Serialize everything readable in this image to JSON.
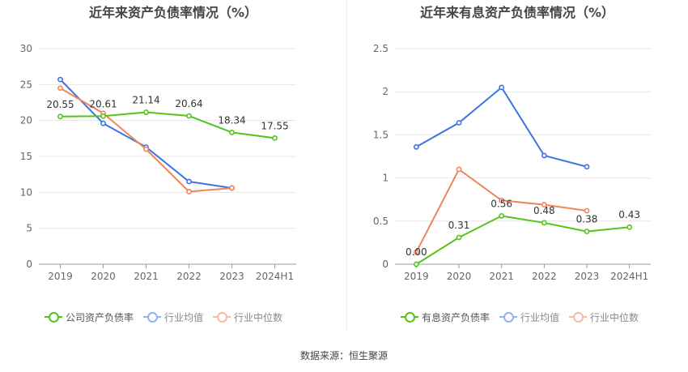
{
  "footer": {
    "source": "数据来源：恒生聚源"
  },
  "colors": {
    "company": "#52c41a",
    "industry_avg": "#3b74e6",
    "industry_median": "#f0845a",
    "grid": "#e6e6e6",
    "axis_text": "#666666"
  },
  "chart_data": [
    {
      "type": "line",
      "title": "近年来资产负债率情况（%）",
      "categories": [
        "2019",
        "2020",
        "2021",
        "2022",
        "2023",
        "2024H1"
      ],
      "ylim": [
        0,
        30
      ],
      "yticks": [
        "0",
        "5",
        "10",
        "15",
        "20",
        "25",
        "30"
      ],
      "legend_position": "bottom",
      "grid": true,
      "series": [
        {
          "name": "公司资产负债率",
          "key": "company",
          "values": [
            20.55,
            20.61,
            21.14,
            20.64,
            18.34,
            17.55
          ],
          "labels": [
            "20.55",
            "20.61",
            "21.14",
            "20.64",
            "18.34",
            "17.55"
          ]
        },
        {
          "name": "行业均值",
          "key": "industry_avg",
          "values": [
            25.7,
            19.6,
            16.3,
            11.5,
            10.6,
            null
          ]
        },
        {
          "name": "行业中位数",
          "key": "industry_median",
          "values": [
            24.5,
            21.0,
            16.0,
            10.1,
            10.6,
            null
          ]
        }
      ]
    },
    {
      "type": "line",
      "title": "近年来有息资产负债率情况（%）",
      "categories": [
        "2019",
        "2020",
        "2021",
        "2022",
        "2023",
        "2024H1"
      ],
      "ylim": [
        0,
        2.5
      ],
      "yticks": [
        "0",
        "0.5",
        "1",
        "1.5",
        "2",
        "2.5"
      ],
      "legend_position": "bottom",
      "grid": true,
      "series": [
        {
          "name": "有息资产负债率",
          "key": "company",
          "values": [
            0.0,
            0.31,
            0.56,
            0.48,
            0.38,
            0.43
          ],
          "labels": [
            "0.00",
            "0.31",
            "0.56",
            "0.48",
            "0.38",
            "0.43"
          ]
        },
        {
          "name": "行业均值",
          "key": "industry_avg",
          "values": [
            1.36,
            1.64,
            2.05,
            1.26,
            1.13,
            null
          ]
        },
        {
          "name": "行业中位数",
          "key": "industry_median",
          "values": [
            0.14,
            1.1,
            0.74,
            0.69,
            0.62,
            null
          ]
        }
      ]
    }
  ]
}
